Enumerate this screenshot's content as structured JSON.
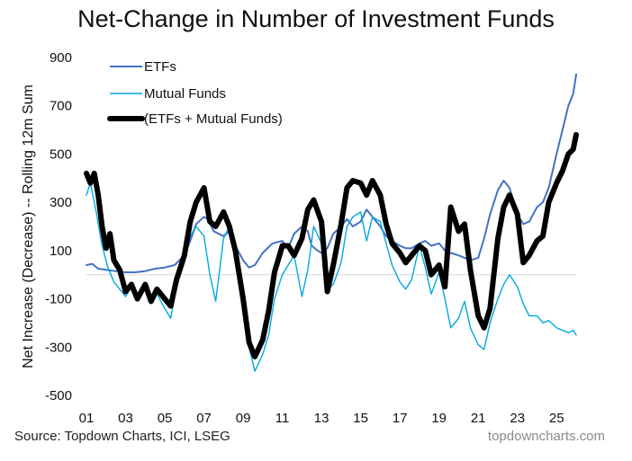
{
  "chart_data": {
    "type": "line",
    "title": "Net-Change in Number of Investment Funds",
    "ylabel": "Net Increase (Decrease) -- Rolling 12m Sum",
    "xlabel": "",
    "xlim": [
      2001,
      2026
    ],
    "ylim": [
      -500,
      900
    ],
    "y_ticks": [
      -500,
      -300,
      -100,
      100,
      300,
      500,
      700,
      900
    ],
    "x_ticks": [
      2001,
      2003,
      2005,
      2007,
      2009,
      2011,
      2013,
      2015,
      2017,
      2019,
      2021,
      2023,
      2025
    ],
    "x_tick_labels": [
      "01",
      "03",
      "05",
      "07",
      "09",
      "11",
      "13",
      "15",
      "17",
      "19",
      "21",
      "23",
      "25"
    ],
    "grid": false,
    "legend_position": "top-left",
    "series": [
      {
        "name": "ETFs",
        "color": "#4472C4",
        "points": [
          [
            2001.0,
            40
          ],
          [
            2001.3,
            45
          ],
          [
            2001.6,
            25
          ],
          [
            2002.0,
            20
          ],
          [
            2002.5,
            15
          ],
          [
            2003.0,
            10
          ],
          [
            2003.5,
            10
          ],
          [
            2004.0,
            15
          ],
          [
            2004.5,
            25
          ],
          [
            2005.0,
            30
          ],
          [
            2005.5,
            40
          ],
          [
            2006.0,
            80
          ],
          [
            2006.3,
            140
          ],
          [
            2006.6,
            210
          ],
          [
            2007.0,
            240
          ],
          [
            2007.2,
            230
          ],
          [
            2007.5,
            180
          ],
          [
            2008.0,
            160
          ],
          [
            2008.3,
            180
          ],
          [
            2008.6,
            120
          ],
          [
            2009.0,
            60
          ],
          [
            2009.3,
            30
          ],
          [
            2009.6,
            40
          ],
          [
            2010.0,
            90
          ],
          [
            2010.5,
            130
          ],
          [
            2011.0,
            140
          ],
          [
            2011.3,
            110
          ],
          [
            2011.6,
            170
          ],
          [
            2012.0,
            200
          ],
          [
            2012.3,
            180
          ],
          [
            2012.5,
            120
          ],
          [
            2012.8,
            100
          ],
          [
            2013.0,
            90
          ],
          [
            2013.3,
            110
          ],
          [
            2013.6,
            170
          ],
          [
            2014.0,
            200
          ],
          [
            2014.3,
            230
          ],
          [
            2014.6,
            200
          ],
          [
            2015.0,
            220
          ],
          [
            2015.3,
            270
          ],
          [
            2015.6,
            240
          ],
          [
            2016.0,
            200
          ],
          [
            2016.3,
            160
          ],
          [
            2016.6,
            140
          ],
          [
            2017.0,
            120
          ],
          [
            2017.3,
            110
          ],
          [
            2017.6,
            110
          ],
          [
            2018.0,
            130
          ],
          [
            2018.3,
            140
          ],
          [
            2018.6,
            120
          ],
          [
            2019.0,
            130
          ],
          [
            2019.3,
            100
          ],
          [
            2019.6,
            90
          ],
          [
            2020.0,
            80
          ],
          [
            2020.3,
            70
          ],
          [
            2020.6,
            60
          ],
          [
            2021.0,
            70
          ],
          [
            2021.3,
            150
          ],
          [
            2021.6,
            250
          ],
          [
            2022.0,
            350
          ],
          [
            2022.3,
            390
          ],
          [
            2022.6,
            360
          ],
          [
            2023.0,
            250
          ],
          [
            2023.3,
            210
          ],
          [
            2023.6,
            220
          ],
          [
            2024.0,
            280
          ],
          [
            2024.3,
            300
          ],
          [
            2024.6,
            360
          ],
          [
            2025.0,
            500
          ],
          [
            2025.3,
            600
          ],
          [
            2025.6,
            700
          ],
          [
            2025.85,
            750
          ],
          [
            2026.0,
            830
          ]
        ]
      },
      {
        "name": "Mutual Funds",
        "color": "#00A9E0",
        "points": [
          [
            2001.0,
            330
          ],
          [
            2001.2,
            380
          ],
          [
            2001.5,
            260
          ],
          [
            2001.8,
            120
          ],
          [
            2002.1,
            30
          ],
          [
            2002.4,
            -30
          ],
          [
            2002.7,
            -60
          ],
          [
            2003.0,
            -90
          ],
          [
            2003.3,
            -50
          ],
          [
            2003.6,
            -90
          ],
          [
            2004.0,
            -60
          ],
          [
            2004.3,
            -120
          ],
          [
            2004.6,
            -80
          ],
          [
            2005.0,
            -140
          ],
          [
            2005.3,
            -180
          ],
          [
            2005.6,
            -50
          ],
          [
            2006.0,
            50
          ],
          [
            2006.3,
            160
          ],
          [
            2006.6,
            200
          ],
          [
            2007.0,
            160
          ],
          [
            2007.3,
            0
          ],
          [
            2007.6,
            -110
          ],
          [
            2008.0,
            150
          ],
          [
            2008.3,
            200
          ],
          [
            2008.6,
            60
          ],
          [
            2009.0,
            -160
          ],
          [
            2009.3,
            -300
          ],
          [
            2009.6,
            -400
          ],
          [
            2010.0,
            -330
          ],
          [
            2010.3,
            -250
          ],
          [
            2010.6,
            -100
          ],
          [
            2011.0,
            0
          ],
          [
            2011.3,
            40
          ],
          [
            2011.6,
            80
          ],
          [
            2012.0,
            -90
          ],
          [
            2012.3,
            20
          ],
          [
            2012.6,
            200
          ],
          [
            2013.0,
            130
          ],
          [
            2013.3,
            -60
          ],
          [
            2013.6,
            -40
          ],
          [
            2014.0,
            50
          ],
          [
            2014.3,
            200
          ],
          [
            2014.6,
            240
          ],
          [
            2015.0,
            260
          ],
          [
            2015.3,
            140
          ],
          [
            2015.6,
            240
          ],
          [
            2016.0,
            220
          ],
          [
            2016.3,
            130
          ],
          [
            2016.6,
            40
          ],
          [
            2017.0,
            -30
          ],
          [
            2017.3,
            -60
          ],
          [
            2017.6,
            -20
          ],
          [
            2018.0,
            120
          ],
          [
            2018.3,
            30
          ],
          [
            2018.6,
            -80
          ],
          [
            2019.0,
            10
          ],
          [
            2019.3,
            -100
          ],
          [
            2019.6,
            -220
          ],
          [
            2020.0,
            -180
          ],
          [
            2020.3,
            -110
          ],
          [
            2020.6,
            -220
          ],
          [
            2021.0,
            -290
          ],
          [
            2021.3,
            -310
          ],
          [
            2021.6,
            -200
          ],
          [
            2022.0,
            -100
          ],
          [
            2022.3,
            -40
          ],
          [
            2022.6,
            0
          ],
          [
            2023.0,
            -50
          ],
          [
            2023.3,
            -120
          ],
          [
            2023.6,
            -170
          ],
          [
            2024.0,
            -170
          ],
          [
            2024.3,
            -200
          ],
          [
            2024.6,
            -190
          ],
          [
            2025.0,
            -220
          ],
          [
            2025.3,
            -230
          ],
          [
            2025.6,
            -240
          ],
          [
            2025.85,
            -230
          ],
          [
            2026.0,
            -250
          ]
        ]
      },
      {
        "name": "(ETFs + Mutual Funds)",
        "color": "#000000",
        "points": [
          [
            2001.0,
            420
          ],
          [
            2001.2,
            380
          ],
          [
            2001.4,
            420
          ],
          [
            2001.6,
            330
          ],
          [
            2001.8,
            200
          ],
          [
            2002.0,
            110
          ],
          [
            2002.2,
            170
          ],
          [
            2002.4,
            60
          ],
          [
            2002.7,
            20
          ],
          [
            2003.0,
            -70
          ],
          [
            2003.3,
            -40
          ],
          [
            2003.6,
            -100
          ],
          [
            2004.0,
            -40
          ],
          [
            2004.3,
            -110
          ],
          [
            2004.6,
            -60
          ],
          [
            2005.0,
            -100
          ],
          [
            2005.3,
            -130
          ],
          [
            2005.6,
            -20
          ],
          [
            2006.0,
            80
          ],
          [
            2006.3,
            220
          ],
          [
            2006.6,
            300
          ],
          [
            2007.0,
            360
          ],
          [
            2007.3,
            220
          ],
          [
            2007.6,
            200
          ],
          [
            2008.0,
            260
          ],
          [
            2008.3,
            200
          ],
          [
            2008.6,
            100
          ],
          [
            2009.0,
            -100
          ],
          [
            2009.3,
            -280
          ],
          [
            2009.6,
            -340
          ],
          [
            2010.0,
            -270
          ],
          [
            2010.3,
            -150
          ],
          [
            2010.6,
            10
          ],
          [
            2011.0,
            120
          ],
          [
            2011.3,
            120
          ],
          [
            2011.6,
            80
          ],
          [
            2012.0,
            150
          ],
          [
            2012.3,
            270
          ],
          [
            2012.6,
            310
          ],
          [
            2013.0,
            220
          ],
          [
            2013.3,
            -70
          ],
          [
            2013.6,
            40
          ],
          [
            2014.0,
            210
          ],
          [
            2014.3,
            360
          ],
          [
            2014.6,
            390
          ],
          [
            2015.0,
            380
          ],
          [
            2015.3,
            330
          ],
          [
            2015.6,
            390
          ],
          [
            2016.0,
            330
          ],
          [
            2016.3,
            210
          ],
          [
            2016.6,
            130
          ],
          [
            2017.0,
            90
          ],
          [
            2017.3,
            50
          ],
          [
            2017.6,
            80
          ],
          [
            2018.0,
            120
          ],
          [
            2018.3,
            100
          ],
          [
            2018.6,
            0
          ],
          [
            2019.0,
            40
          ],
          [
            2019.3,
            -50
          ],
          [
            2019.6,
            280
          ],
          [
            2020.0,
            180
          ],
          [
            2020.3,
            210
          ],
          [
            2020.6,
            20
          ],
          [
            2021.0,
            -170
          ],
          [
            2021.3,
            -220
          ],
          [
            2021.6,
            -140
          ],
          [
            2022.0,
            150
          ],
          [
            2022.3,
            280
          ],
          [
            2022.6,
            330
          ],
          [
            2023.0,
            250
          ],
          [
            2023.3,
            50
          ],
          [
            2023.6,
            80
          ],
          [
            2024.0,
            140
          ],
          [
            2024.3,
            160
          ],
          [
            2024.6,
            300
          ],
          [
            2025.0,
            380
          ],
          [
            2025.3,
            430
          ],
          [
            2025.6,
            500
          ],
          [
            2025.85,
            520
          ],
          [
            2026.0,
            580
          ]
        ]
      }
    ]
  },
  "footer": {
    "source": "Source: Topdown Charts, ICI, LSEG",
    "brand": "topdowncharts.com"
  }
}
